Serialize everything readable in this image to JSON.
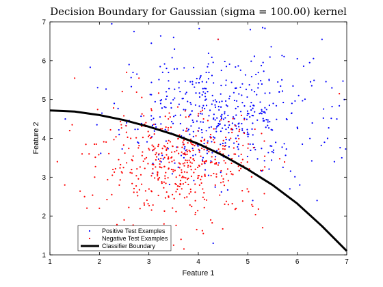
{
  "chart_data": {
    "type": "scatter",
    "title": "Decision Boundary for Gaussian (sigma = 100.00) kernel",
    "xlabel": "Feature 1",
    "ylabel": "Feature 2",
    "xlim": [
      1,
      7
    ],
    "ylim": [
      1,
      7
    ],
    "xticks": [
      "1",
      "2",
      "3",
      "4",
      "5",
      "6",
      "7"
    ],
    "yticks": [
      "1",
      "2",
      "3",
      "4",
      "5",
      "6",
      "7"
    ],
    "grid": false,
    "legend_position": "bottom-left",
    "series": [
      {
        "name": "Positive Test Examples",
        "color": "#0000ff",
        "marker": "dot",
        "distribution": {
          "center": [
            4.4,
            4.6
          ],
          "spread": [
            0.95,
            0.75
          ],
          "count": 480
        },
        "points": [
          [
            2.25,
            6.95
          ],
          [
            2.7,
            6.75
          ],
          [
            3.05,
            6.45
          ],
          [
            3.5,
            6.6
          ],
          [
            4.4,
            6.55
          ],
          [
            5.05,
            6.8
          ],
          [
            5.3,
            6.85
          ],
          [
            6.5,
            6.55
          ],
          [
            6.0,
            6.05
          ],
          [
            6.25,
            5.95
          ],
          [
            6.7,
            5.3
          ],
          [
            6.95,
            5.0
          ],
          [
            6.8,
            4.5
          ],
          [
            6.75,
            3.4
          ],
          [
            6.9,
            3.5
          ],
          [
            6.55,
            3.9
          ],
          [
            6.4,
            2.4
          ],
          [
            6.05,
            2.8
          ],
          [
            5.85,
            2.7
          ],
          [
            5.1,
            2.4
          ],
          [
            4.3,
            1.3
          ],
          [
            2.6,
            5.9
          ],
          [
            2.3,
            4.9
          ],
          [
            2.55,
            4.4
          ],
          [
            1.95,
            4.35
          ],
          [
            2.4,
            4.1
          ]
        ]
      },
      {
        "name": "Negative Test Examples",
        "color": "#ff0000",
        "marker": "dot",
        "distribution": {
          "center": [
            3.65,
            3.35
          ],
          "spread": [
            0.8,
            0.65
          ],
          "count": 470
        },
        "points": [
          [
            1.5,
            5.55
          ],
          [
            1.15,
            3.4
          ],
          [
            1.3,
            2.8
          ],
          [
            1.45,
            4.35
          ],
          [
            1.4,
            4.2
          ],
          [
            1.7,
            2.5
          ],
          [
            2.25,
            2.55
          ],
          [
            2.0,
            2.2
          ],
          [
            2.5,
            1.9
          ],
          [
            2.3,
            1.7
          ],
          [
            3.5,
            1.25
          ],
          [
            3.65,
            1.4
          ],
          [
            4.1,
            1.55
          ],
          [
            4.25,
            1.9
          ],
          [
            5.1,
            2.25
          ],
          [
            5.3,
            1.7
          ],
          [
            2.55,
            5.7
          ],
          [
            2.8,
            5.55
          ],
          [
            4.4,
            6.55
          ],
          [
            6.85,
            5.15
          ],
          [
            1.65,
            3.6
          ],
          [
            1.9,
            3.85
          ]
        ]
      },
      {
        "name": "Classifier Boundary",
        "color": "#000000",
        "marker": "line",
        "x": [
          1.0,
          1.5,
          2.0,
          2.5,
          3.0,
          3.5,
          4.0,
          4.5,
          5.0,
          5.5,
          6.0,
          6.5,
          7.0
        ],
        "y": [
          4.72,
          4.69,
          4.6,
          4.47,
          4.3,
          4.1,
          3.86,
          3.56,
          3.2,
          2.8,
          2.32,
          1.74,
          1.1
        ]
      }
    ]
  }
}
